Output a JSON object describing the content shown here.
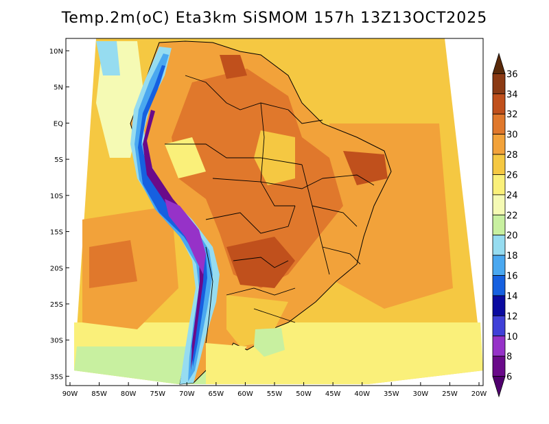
{
  "title": "Temp.2m(oC) Eta3km SiSMOM 157h 13Z13OCT2025",
  "map": {
    "lat_labels": [
      "10N",
      "5N",
      "EQ",
      "5S",
      "10S",
      "15S",
      "20S",
      "25S",
      "30S",
      "35S"
    ],
    "lon_labels": [
      "90W",
      "85W",
      "80W",
      "75W",
      "70W",
      "65W",
      "60W",
      "55W",
      "50W",
      "45W",
      "40W",
      "35W",
      "30W",
      "25W",
      "20W"
    ],
    "lat_range": [
      10,
      -38
    ],
    "lon_range": [
      -90,
      -20
    ]
  },
  "colorbar": {
    "labels": [
      "36",
      "34",
      "32",
      "30",
      "28",
      "26",
      "24",
      "22",
      "20",
      "18",
      "16",
      "14",
      "12",
      "10",
      "8",
      "6"
    ],
    "colors": [
      "#5a2a0a",
      "#8b3a14",
      "#c0501c",
      "#e0782c",
      "#f2a23a",
      "#f5c842",
      "#faf07a",
      "#f5fab4",
      "#c8f0a0",
      "#96dcf0",
      "#4aa8f0",
      "#1660e0",
      "#0a0aa0",
      "#4040d8",
      "#9632c8",
      "#6a0a8a",
      "#50006e"
    ]
  }
}
